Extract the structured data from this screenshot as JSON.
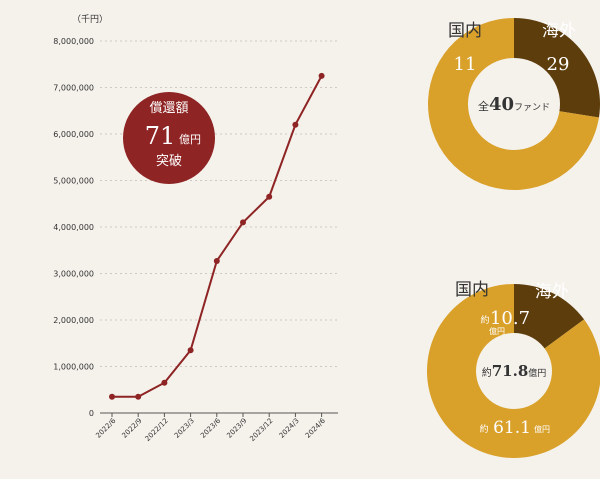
{
  "chart_data": [
    {
      "type": "line",
      "unit_label": "（千円）",
      "x": [
        "2022/6",
        "2022/9",
        "2022/12",
        "2023/3",
        "2023/6",
        "2023/9",
        "2023/12",
        "2024/3",
        "2024/6"
      ],
      "values": [
        350000,
        350000,
        650000,
        1350000,
        3270000,
        4100000,
        4650000,
        6200000,
        7250000
      ],
      "yticks": [
        "0",
        "1,000,000",
        "2,000,000",
        "3,000,000",
        "4,000,000",
        "5,000,000",
        "6,000,000",
        "7,000,000",
        "8,000,000"
      ],
      "ylim": [
        0,
        8000000
      ],
      "grid": true,
      "colors": {
        "line": "#8e2424",
        "grid": "#cfc9bf",
        "axis": "#555555"
      },
      "badge": {
        "line1": "償還額",
        "number": "71",
        "unit": "億円",
        "line3": "突破",
        "color": "#8e2424"
      }
    },
    {
      "type": "pie",
      "slices": [
        {
          "label": "国内",
          "value": 11,
          "color": "#5e3d0d"
        },
        {
          "label": "海外",
          "value": 29,
          "color": "#d9a02a"
        }
      ],
      "center": {
        "prefix": "全",
        "number": "40",
        "suffix": "ファンド"
      }
    },
    {
      "type": "pie",
      "slices": [
        {
          "label": "国内",
          "prefix": "約",
          "number": "10.7",
          "unit": "億円",
          "value": 10.7,
          "color": "#5e3d0d"
        },
        {
          "label": "海外",
          "prefix": "約",
          "number": "61.1",
          "unit": "億円",
          "value": 61.1,
          "color": "#d9a02a"
        }
      ],
      "center": {
        "prefix": "約",
        "number": "71.8",
        "suffix": "億円"
      }
    }
  ]
}
